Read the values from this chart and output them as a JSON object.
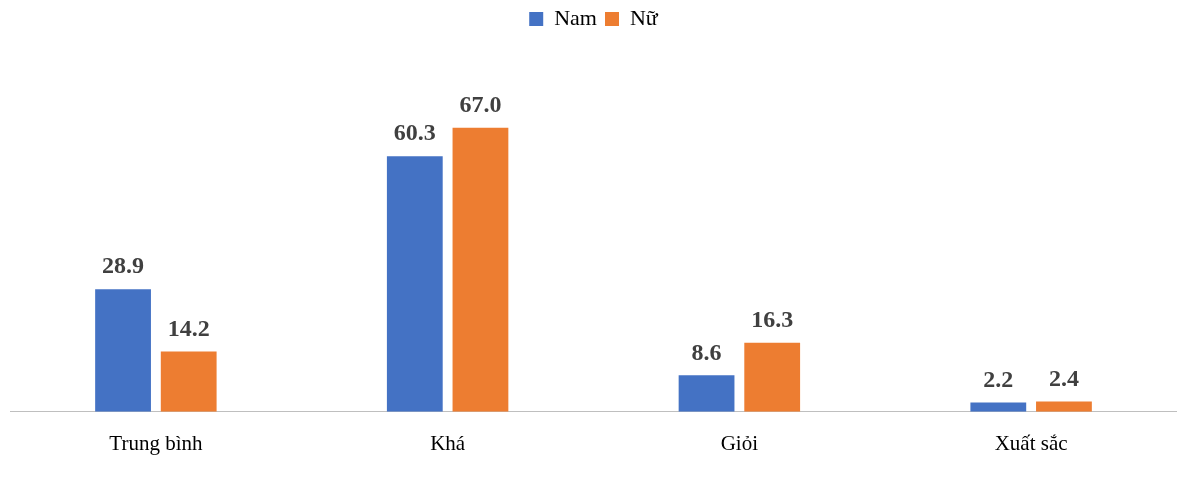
{
  "chart_data": {
    "type": "bar",
    "categories": [
      "Trung bình",
      "Khá",
      "Giỏi",
      "Xuất sắc"
    ],
    "series": [
      {
        "name": "Nam",
        "color": "#4472c4",
        "values": [
          28.9,
          60.3,
          8.6,
          2.2
        ],
        "value_labels": [
          "28.9",
          "60.3",
          "8.6",
          "2.2"
        ]
      },
      {
        "name": "Nữ",
        "color": "#ed7d31",
        "values": [
          14.2,
          67.0,
          16.3,
          2.4
        ],
        "value_labels": [
          "14.2",
          "67.0",
          "16.3",
          "2.4"
        ]
      }
    ],
    "tick_labels": "x",
    "grid": false,
    "legend": "top"
  }
}
